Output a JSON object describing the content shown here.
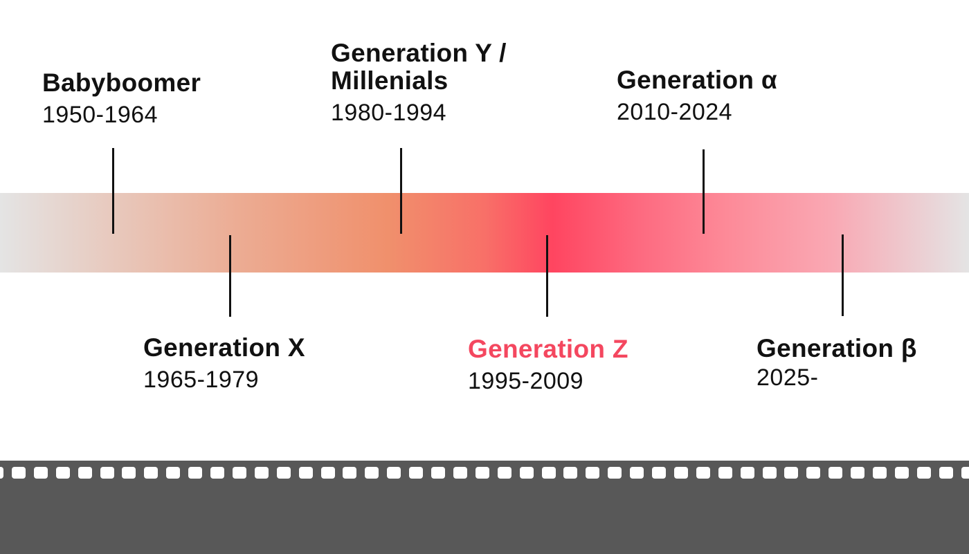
{
  "colors": {
    "highlight": "#f4475f",
    "band_center": "#ff4560",
    "film": "#585858"
  },
  "generations": [
    {
      "name": "Babyboomer",
      "years": "1950-1964"
    },
    {
      "name": "Generation X",
      "years": "1965-1979"
    },
    {
      "name": "Generation Y / Millenials",
      "years": "1980-1994"
    },
    {
      "name": "Generation Z",
      "years": "1995-2009",
      "highlighted": true
    },
    {
      "name": "Generation α",
      "years": "2010-2024"
    },
    {
      "name": "Generation β",
      "years": "2025-"
    }
  ]
}
